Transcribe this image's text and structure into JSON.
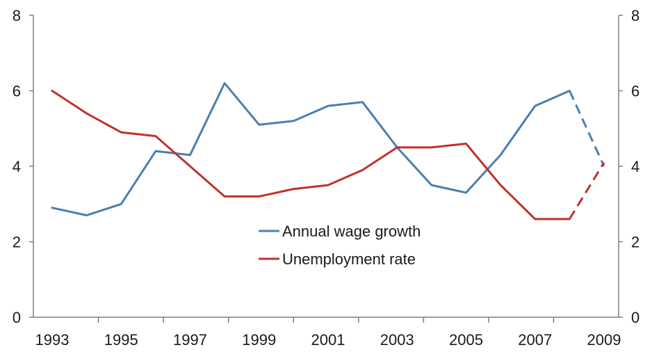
{
  "chart_data": {
    "type": "line",
    "title": "",
    "xlabel": "",
    "ylabel": "",
    "x": [
      1993,
      1994,
      1995,
      1996,
      1997,
      1998,
      1999,
      2000,
      2001,
      2002,
      2003,
      2004,
      2005,
      2006,
      2007,
      2008,
      2009
    ],
    "x_tick_labels": [
      "1993",
      "1995",
      "1997",
      "1999",
      "2001",
      "2003",
      "2005",
      "2007",
      "2009"
    ],
    "y_ticks": [
      0,
      2,
      4,
      6,
      8
    ],
    "y_tick_labels": [
      "0",
      "2",
      "4",
      "6",
      "8"
    ],
    "ylim": [
      0,
      8
    ],
    "xlim": [
      1993,
      2009
    ],
    "grid": false,
    "right_axis": true,
    "legend_position": "center",
    "series": [
      {
        "name": "Annual wage growth",
        "color": "#4a7fb0",
        "values": [
          2.9,
          2.7,
          3.0,
          4.4,
          4.3,
          6.2,
          5.1,
          5.2,
          5.6,
          5.7,
          4.5,
          3.5,
          3.3,
          4.3,
          5.6,
          6.0,
          4.0
        ],
        "dashed_from": 2008
      },
      {
        "name": "Unemployment rate",
        "color": "#c0312b",
        "values": [
          6.0,
          5.4,
          4.9,
          4.8,
          4.0,
          3.2,
          3.2,
          3.4,
          3.5,
          3.9,
          4.5,
          4.5,
          4.6,
          3.5,
          2.6,
          2.6,
          4.1
        ],
        "dashed_from": 2008
      }
    ]
  }
}
